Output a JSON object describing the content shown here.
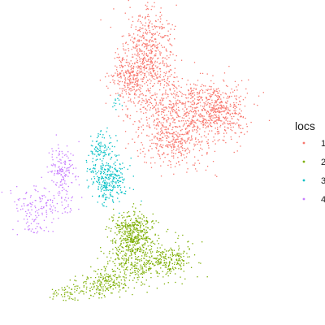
{
  "chart_data": {
    "type": "scatter",
    "title": "",
    "xlabel": "",
    "ylabel": "",
    "axes_visible": false,
    "grid": false,
    "legend": {
      "title": "locs",
      "placement": "right",
      "entries": [
        {
          "label": "1",
          "color": "#F8766D"
        },
        {
          "label": "2",
          "color": "#7CAE00"
        },
        {
          "label": "3",
          "color": "#00BFC4"
        },
        {
          "label": "4",
          "color": "#C77CFF"
        }
      ]
    },
    "xlim": [
      0,
      100
    ],
    "ylim": [
      0,
      100
    ],
    "series": [
      {
        "name": "1",
        "color": "#F8766D",
        "clusters": [
          {
            "cx": 52,
            "cy": 84,
            "sx": 4.5,
            "sy": 8,
            "n": 550
          },
          {
            "cx": 44,
            "cy": 77,
            "sx": 3.5,
            "sy": 4,
            "n": 250
          },
          {
            "cx": 66,
            "cy": 68,
            "sx": 9,
            "sy": 5,
            "n": 600
          },
          {
            "cx": 78,
            "cy": 66,
            "sx": 5,
            "sy": 5,
            "n": 300
          },
          {
            "cx": 61,
            "cy": 57,
            "sx": 6,
            "sy": 4,
            "n": 350
          }
        ]
      },
      {
        "name": "2",
        "color": "#7CAE00",
        "clusters": [
          {
            "cx": 46,
            "cy": 28,
            "sx": 4,
            "sy": 3,
            "n": 350
          },
          {
            "cx": 45,
            "cy": 19,
            "sx": 5,
            "sy": 4,
            "n": 300
          },
          {
            "cx": 58,
            "cy": 19,
            "sx": 4.5,
            "sy": 3,
            "n": 250
          },
          {
            "cx": 35,
            "cy": 11,
            "sx": 5,
            "sy": 2,
            "n": 180
          },
          {
            "cx": 22,
            "cy": 8,
            "sx": 3,
            "sy": 1.5,
            "n": 60
          }
        ]
      },
      {
        "name": "3",
        "color": "#00BFC4",
        "clusters": [
          {
            "cx": 37,
            "cy": 45,
            "sx": 3.5,
            "sy": 4,
            "n": 300
          },
          {
            "cx": 34,
            "cy": 55,
            "sx": 2,
            "sy": 2.5,
            "n": 80
          },
          {
            "cx": 40,
            "cy": 69,
            "sx": 0.8,
            "sy": 1.5,
            "n": 12
          }
        ]
      },
      {
        "name": "4",
        "color": "#C77CFF",
        "clusters": [
          {
            "cx": 20,
            "cy": 47,
            "sx": 2.5,
            "sy": 4,
            "n": 150
          },
          {
            "cx": 13,
            "cy": 37,
            "sx": 6,
            "sy": 2.5,
            "n": 130
          },
          {
            "cx": 9,
            "cy": 30,
            "sx": 3,
            "sy": 2,
            "n": 40
          }
        ]
      }
    ]
  }
}
